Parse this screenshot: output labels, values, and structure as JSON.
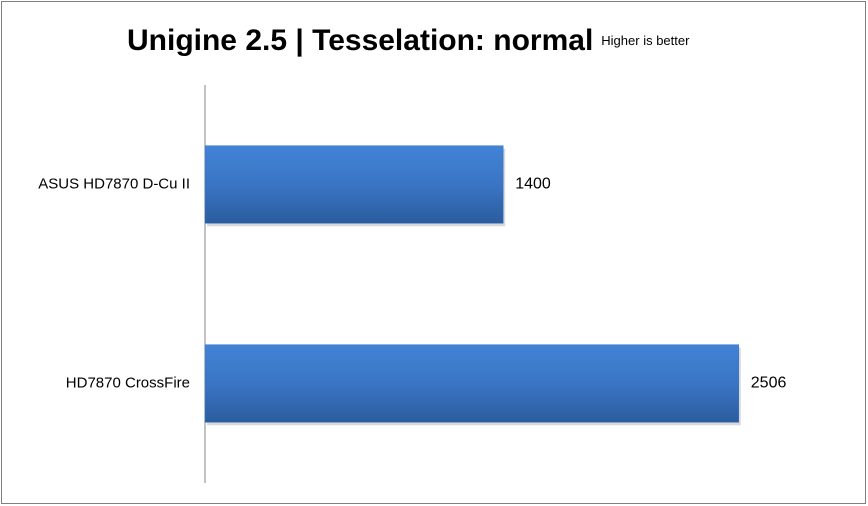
{
  "chart_data": {
    "type": "hbar",
    "title": "Unigine 2.5 | Tesselation: normal",
    "subtitle": "Higher is better",
    "categories": [
      "ASUS HD7870 D-Cu II",
      "HD7870 CrossFire"
    ],
    "values": [
      1400,
      2506
    ],
    "color": "#3a75c4",
    "xlim": [
      0,
      3000
    ]
  }
}
